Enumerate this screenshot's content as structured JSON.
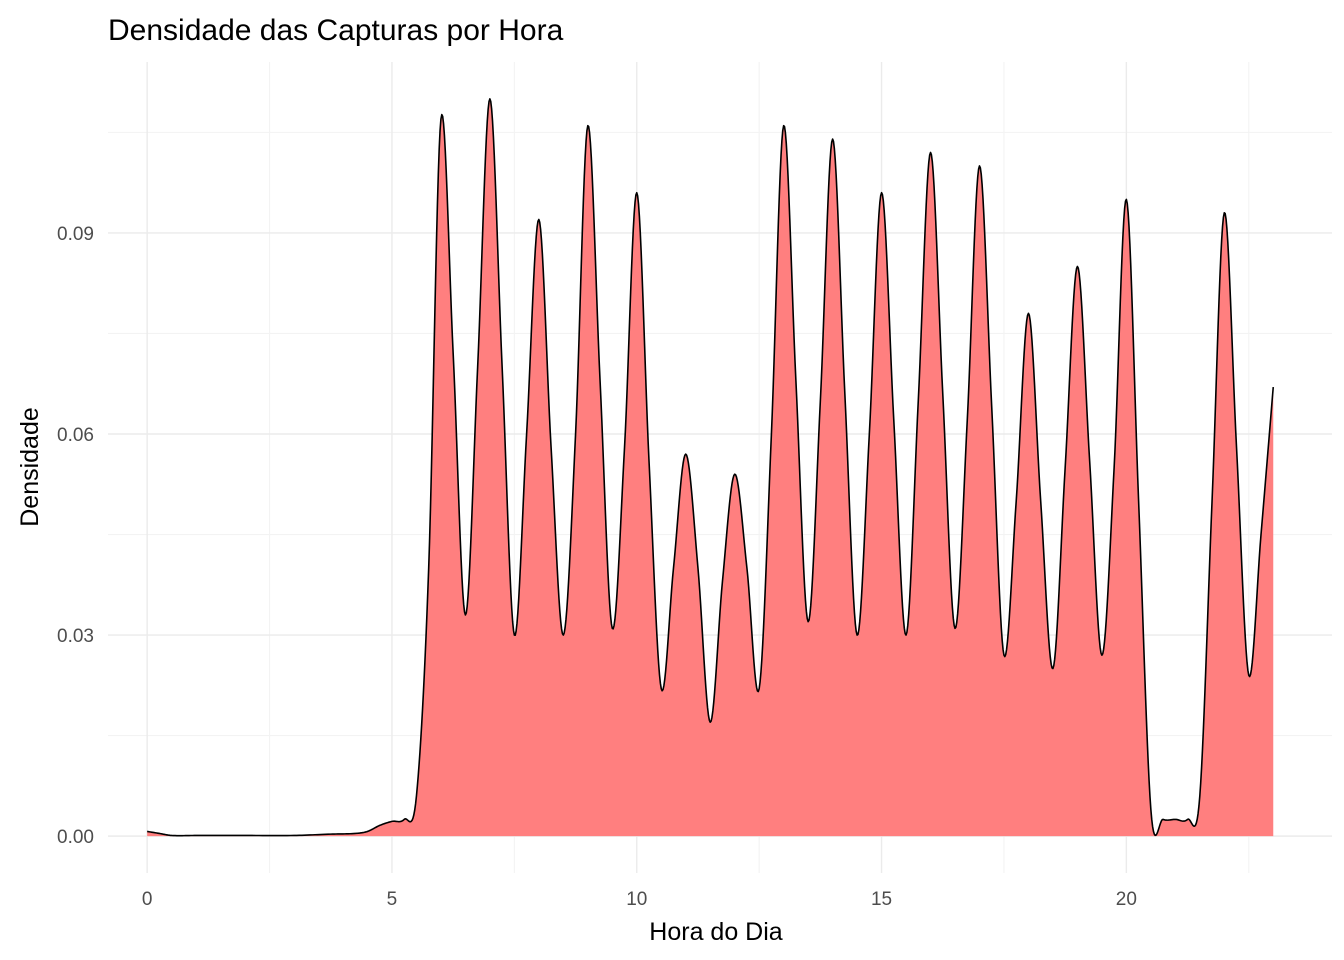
{
  "chart_data": {
    "type": "area",
    "title": "Densidade das Capturas por Hora",
    "xlabel": "Hora do Dia",
    "ylabel": "Densidade",
    "xlim": [
      -0.8,
      24.2
    ],
    "ylim": [
      -0.0055,
      0.1155
    ],
    "x_ticks": [
      0,
      5,
      10,
      15,
      20
    ],
    "x_tick_labels": [
      "0",
      "5",
      "10",
      "15",
      "20"
    ],
    "y_ticks": [
      0.0,
      0.03,
      0.06,
      0.09
    ],
    "y_tick_labels": [
      "0.00",
      "0.03",
      "0.06",
      "0.09"
    ],
    "grid": true,
    "legend": "none",
    "fill_color": "#ff7f7f",
    "line_color": "#000000",
    "x": [
      0,
      0.25,
      0.5,
      1,
      2,
      3,
      3.75,
      4.25,
      4.5,
      4.75,
      5,
      5.25,
      5.5,
      5.75,
      6,
      6.25,
      6.5,
      6.75,
      7,
      7.25,
      7.5,
      7.75,
      8,
      8.25,
      8.5,
      8.75,
      9,
      9.25,
      9.5,
      9.75,
      10,
      10.25,
      10.5,
      10.75,
      11,
      11.25,
      11.5,
      11.75,
      12,
      12.25,
      12.5,
      12.75,
      13,
      13.25,
      13.5,
      13.75,
      14,
      14.25,
      14.5,
      14.75,
      15,
      15.25,
      15.5,
      15.75,
      16,
      16.25,
      16.5,
      16.75,
      17,
      17.25,
      17.5,
      17.75,
      18,
      18.25,
      18.5,
      18.75,
      19,
      19.25,
      19.5,
      19.75,
      20,
      20.25,
      20.5,
      20.75,
      21,
      21.25,
      21.5,
      21.75,
      22,
      22.25,
      22.5,
      22.75,
      23
    ],
    "y": [
      0.0007,
      0.0004,
      0.0001,
      0.0001,
      0.0001,
      0.0001,
      0.0003,
      0.0004,
      0.0007,
      0.0016,
      0.0022,
      0.0025,
      0.006,
      0.04,
      0.107,
      0.072,
      0.033,
      0.07,
      0.11,
      0.07,
      0.03,
      0.06,
      0.092,
      0.058,
      0.03,
      0.06,
      0.106,
      0.068,
      0.031,
      0.058,
      0.096,
      0.056,
      0.022,
      0.04,
      0.057,
      0.04,
      0.017,
      0.038,
      0.054,
      0.04,
      0.022,
      0.06,
      0.106,
      0.068,
      0.032,
      0.065,
      0.104,
      0.066,
      0.03,
      0.06,
      0.096,
      0.062,
      0.03,
      0.065,
      0.102,
      0.066,
      0.031,
      0.062,
      0.1,
      0.064,
      0.027,
      0.05,
      0.078,
      0.05,
      0.025,
      0.055,
      0.085,
      0.056,
      0.027,
      0.055,
      0.095,
      0.05,
      0.004,
      0.0025,
      0.0025,
      0.0025,
      0.006,
      0.05,
      0.093,
      0.058,
      0.024,
      0.045,
      0.067
    ]
  }
}
